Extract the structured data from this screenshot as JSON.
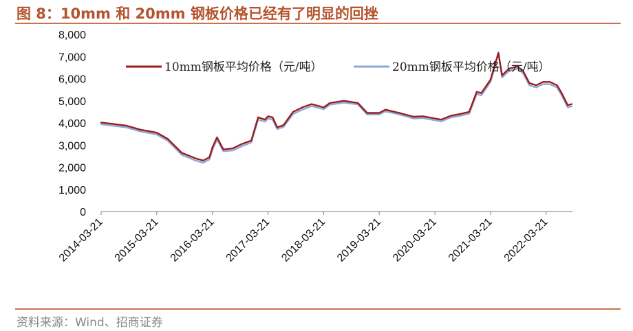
{
  "title": "图 8：10mm 和 20mm 钢板价格已经有了明显的回挫",
  "source": "资料来源：Wind、招商证券",
  "chart_data": {
    "type": "line",
    "title": "图 8：10mm 和 20mm 钢板价格已经有了明显的回挫",
    "xlabel": "",
    "ylabel": "",
    "ylim": [
      0,
      8000
    ],
    "yticks": [
      0,
      1000,
      2000,
      3000,
      4000,
      5000,
      6000,
      7000,
      8000
    ],
    "ytick_labels": [
      "0",
      "1,000",
      "2,000",
      "3,000",
      "4,000",
      "5,000",
      "6,000",
      "7,000",
      "8,000"
    ],
    "xlim": [
      "2014-03-21",
      "2022-09-10"
    ],
    "xtick_labels": [
      "2014-03-21",
      "2015-03-21",
      "2016-03-21",
      "2017-03-21",
      "2018-03-21",
      "2019-03-21",
      "2020-03-21",
      "2021-03-21",
      "2022-03-21"
    ],
    "legend_position": "top",
    "grid": false,
    "series": [
      {
        "name": "10mm钢板平均价格（元/吨）",
        "color": "#9b1c1c",
        "points": [
          [
            "2014-03-21",
            4020
          ],
          [
            "2014-06-01",
            3960
          ],
          [
            "2014-09-01",
            3880
          ],
          [
            "2014-12-01",
            3700
          ],
          [
            "2015-03-21",
            3560
          ],
          [
            "2015-06-01",
            3280
          ],
          [
            "2015-09-01",
            2650
          ],
          [
            "2015-12-01",
            2400
          ],
          [
            "2016-01-20",
            2300
          ],
          [
            "2016-03-01",
            2450
          ],
          [
            "2016-03-21",
            2900
          ],
          [
            "2016-04-20",
            3350
          ],
          [
            "2016-06-01",
            2800
          ],
          [
            "2016-08-01",
            2850
          ],
          [
            "2016-10-01",
            3050
          ],
          [
            "2016-12-01",
            3200
          ],
          [
            "2017-01-15",
            4250
          ],
          [
            "2017-03-01",
            4150
          ],
          [
            "2017-03-21",
            4300
          ],
          [
            "2017-04-20",
            4250
          ],
          [
            "2017-05-20",
            3800
          ],
          [
            "2017-07-01",
            3900
          ],
          [
            "2017-09-01",
            4500
          ],
          [
            "2017-11-01",
            4700
          ],
          [
            "2018-01-01",
            4850
          ],
          [
            "2018-03-21",
            4700
          ],
          [
            "2018-05-01",
            4900
          ],
          [
            "2018-08-01",
            5000
          ],
          [
            "2018-11-01",
            4900
          ],
          [
            "2019-01-01",
            4450
          ],
          [
            "2019-03-21",
            4450
          ],
          [
            "2019-05-01",
            4600
          ],
          [
            "2019-08-01",
            4450
          ],
          [
            "2019-11-01",
            4280
          ],
          [
            "2020-01-01",
            4300
          ],
          [
            "2020-03-21",
            4200
          ],
          [
            "2020-05-01",
            4150
          ],
          [
            "2020-07-01",
            4320
          ],
          [
            "2020-09-01",
            4400
          ],
          [
            "2020-11-01",
            4500
          ],
          [
            "2020-12-20",
            5400
          ],
          [
            "2021-01-20",
            5350
          ],
          [
            "2021-03-21",
            5950
          ],
          [
            "2021-04-15",
            6550
          ],
          [
            "2021-05-12",
            7150
          ],
          [
            "2021-06-05",
            6150
          ],
          [
            "2021-07-20",
            6450
          ],
          [
            "2021-09-15",
            6550
          ],
          [
            "2021-10-20",
            6350
          ],
          [
            "2021-12-01",
            5800
          ],
          [
            "2022-01-15",
            5700
          ],
          [
            "2022-03-01",
            5850
          ],
          [
            "2022-04-15",
            5850
          ],
          [
            "2022-06-01",
            5700
          ],
          [
            "2022-07-01",
            5350
          ],
          [
            "2022-08-10",
            4800
          ],
          [
            "2022-09-05",
            4850
          ]
        ]
      },
      {
        "name": "20mm钢板平均价格（元/吨）",
        "color": "#8da8d8",
        "points": [
          [
            "2014-03-21",
            3940
          ],
          [
            "2014-06-01",
            3880
          ],
          [
            "2014-09-01",
            3800
          ],
          [
            "2014-12-01",
            3620
          ],
          [
            "2015-03-21",
            3480
          ],
          [
            "2015-06-01",
            3200
          ],
          [
            "2015-09-01",
            2560
          ],
          [
            "2015-12-01",
            2300
          ],
          [
            "2016-01-20",
            2200
          ],
          [
            "2016-03-01",
            2350
          ],
          [
            "2016-03-21",
            2800
          ],
          [
            "2016-04-20",
            3250
          ],
          [
            "2016-06-01",
            2720
          ],
          [
            "2016-08-01",
            2760
          ],
          [
            "2016-10-01",
            2950
          ],
          [
            "2016-12-01",
            3120
          ],
          [
            "2017-01-15",
            4150
          ],
          [
            "2017-03-01",
            4060
          ],
          [
            "2017-03-21",
            4200
          ],
          [
            "2017-04-20",
            4150
          ],
          [
            "2017-05-20",
            3720
          ],
          [
            "2017-07-01",
            3820
          ],
          [
            "2017-09-01",
            4400
          ],
          [
            "2017-11-01",
            4600
          ],
          [
            "2018-01-01",
            4760
          ],
          [
            "2018-03-21",
            4620
          ],
          [
            "2018-05-01",
            4820
          ],
          [
            "2018-08-01",
            4920
          ],
          [
            "2018-11-01",
            4830
          ],
          [
            "2019-01-01",
            4380
          ],
          [
            "2019-03-21",
            4380
          ],
          [
            "2019-05-01",
            4520
          ],
          [
            "2019-08-01",
            4380
          ],
          [
            "2019-11-01",
            4200
          ],
          [
            "2020-01-01",
            4220
          ],
          [
            "2020-03-21",
            4120
          ],
          [
            "2020-05-01",
            4070
          ],
          [
            "2020-07-01",
            4240
          ],
          [
            "2020-09-01",
            4320
          ],
          [
            "2020-11-01",
            4420
          ],
          [
            "2020-12-20",
            5300
          ],
          [
            "2021-01-20",
            5250
          ],
          [
            "2021-03-21",
            5850
          ],
          [
            "2021-04-15",
            6450
          ],
          [
            "2021-05-12",
            7200
          ],
          [
            "2021-06-05",
            6050
          ],
          [
            "2021-07-20",
            6350
          ],
          [
            "2021-09-15",
            6450
          ],
          [
            "2021-10-20",
            6250
          ],
          [
            "2021-12-01",
            5700
          ],
          [
            "2022-01-15",
            5600
          ],
          [
            "2022-03-01",
            5750
          ],
          [
            "2022-04-15",
            5750
          ],
          [
            "2022-06-01",
            5600
          ],
          [
            "2022-07-01",
            5250
          ],
          [
            "2022-08-10",
            4700
          ],
          [
            "2022-09-05",
            4750
          ]
        ]
      }
    ]
  }
}
